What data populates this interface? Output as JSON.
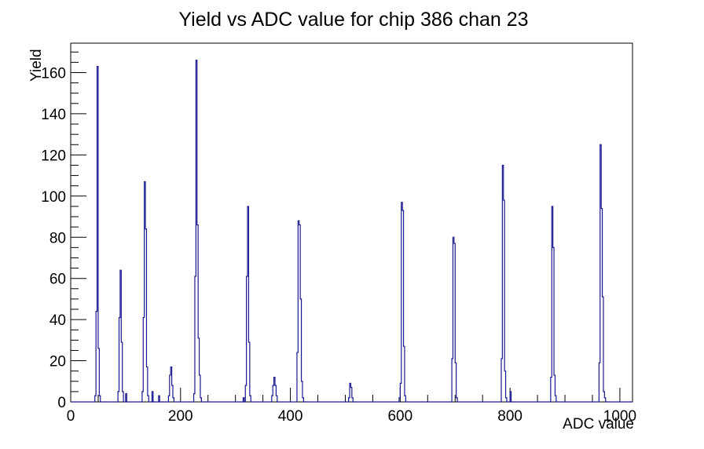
{
  "chart_data": {
    "type": "bar",
    "title": "Yield vs ADC value for chip 386 chan 23",
    "xlabel": "ADC value",
    "ylabel": "Yield",
    "xlim": [
      0,
      1023
    ],
    "ylim": [
      0,
      174.3
    ],
    "x_major_ticks": [
      0,
      200,
      400,
      600,
      800,
      1000
    ],
    "x_minor_step": 50,
    "y_major_ticks": [
      0,
      20,
      40,
      60,
      80,
      100,
      120,
      140,
      160
    ],
    "y_minor_step": 5,
    "bin_width": 2,
    "line_color": "#181890",
    "frame_color": "#000000",
    "background": "#ffffff",
    "grid": false,
    "legend": "none",
    "bins": [
      [
        44,
        3
      ],
      [
        46,
        44
      ],
      [
        48,
        163
      ],
      [
        50,
        26
      ],
      [
        52,
        3
      ],
      [
        86,
        5
      ],
      [
        88,
        41
      ],
      [
        90,
        64
      ],
      [
        92,
        29
      ],
      [
        94,
        5
      ],
      [
        100,
        4
      ],
      [
        130,
        5
      ],
      [
        132,
        41
      ],
      [
        134,
        107
      ],
      [
        136,
        84
      ],
      [
        138,
        17
      ],
      [
        140,
        3
      ],
      [
        148,
        5
      ],
      [
        160,
        3
      ],
      [
        178,
        3
      ],
      [
        180,
        13
      ],
      [
        182,
        17
      ],
      [
        184,
        8
      ],
      [
        186,
        2
      ],
      [
        224,
        4
      ],
      [
        226,
        61
      ],
      [
        228,
        166
      ],
      [
        230,
        86
      ],
      [
        232,
        31
      ],
      [
        234,
        13
      ],
      [
        236,
        2
      ],
      [
        314,
        2
      ],
      [
        318,
        8
      ],
      [
        320,
        61
      ],
      [
        322,
        95
      ],
      [
        324,
        29
      ],
      [
        326,
        3
      ],
      [
        366,
        3
      ],
      [
        368,
        8
      ],
      [
        370,
        12
      ],
      [
        372,
        8
      ],
      [
        374,
        3
      ],
      [
        412,
        24
      ],
      [
        414,
        88
      ],
      [
        416,
        86
      ],
      [
        418,
        50
      ],
      [
        420,
        10
      ],
      [
        422,
        2
      ],
      [
        506,
        2
      ],
      [
        508,
        9
      ],
      [
        510,
        7
      ],
      [
        512,
        2
      ],
      [
        598,
        2
      ],
      [
        600,
        9
      ],
      [
        602,
        97
      ],
      [
        604,
        93
      ],
      [
        606,
        27
      ],
      [
        608,
        3
      ],
      [
        694,
        21
      ],
      [
        696,
        80
      ],
      [
        698,
        77
      ],
      [
        700,
        19
      ],
      [
        702,
        2
      ],
      [
        784,
        21
      ],
      [
        786,
        115
      ],
      [
        788,
        98
      ],
      [
        790,
        15
      ],
      [
        792,
        2
      ],
      [
        800,
        5
      ],
      [
        874,
        12
      ],
      [
        876,
        95
      ],
      [
        878,
        75
      ],
      [
        880,
        13
      ],
      [
        882,
        3
      ],
      [
        962,
        19
      ],
      [
        964,
        125
      ],
      [
        966,
        94
      ],
      [
        968,
        51
      ],
      [
        970,
        5
      ],
      [
        972,
        2
      ]
    ]
  }
}
